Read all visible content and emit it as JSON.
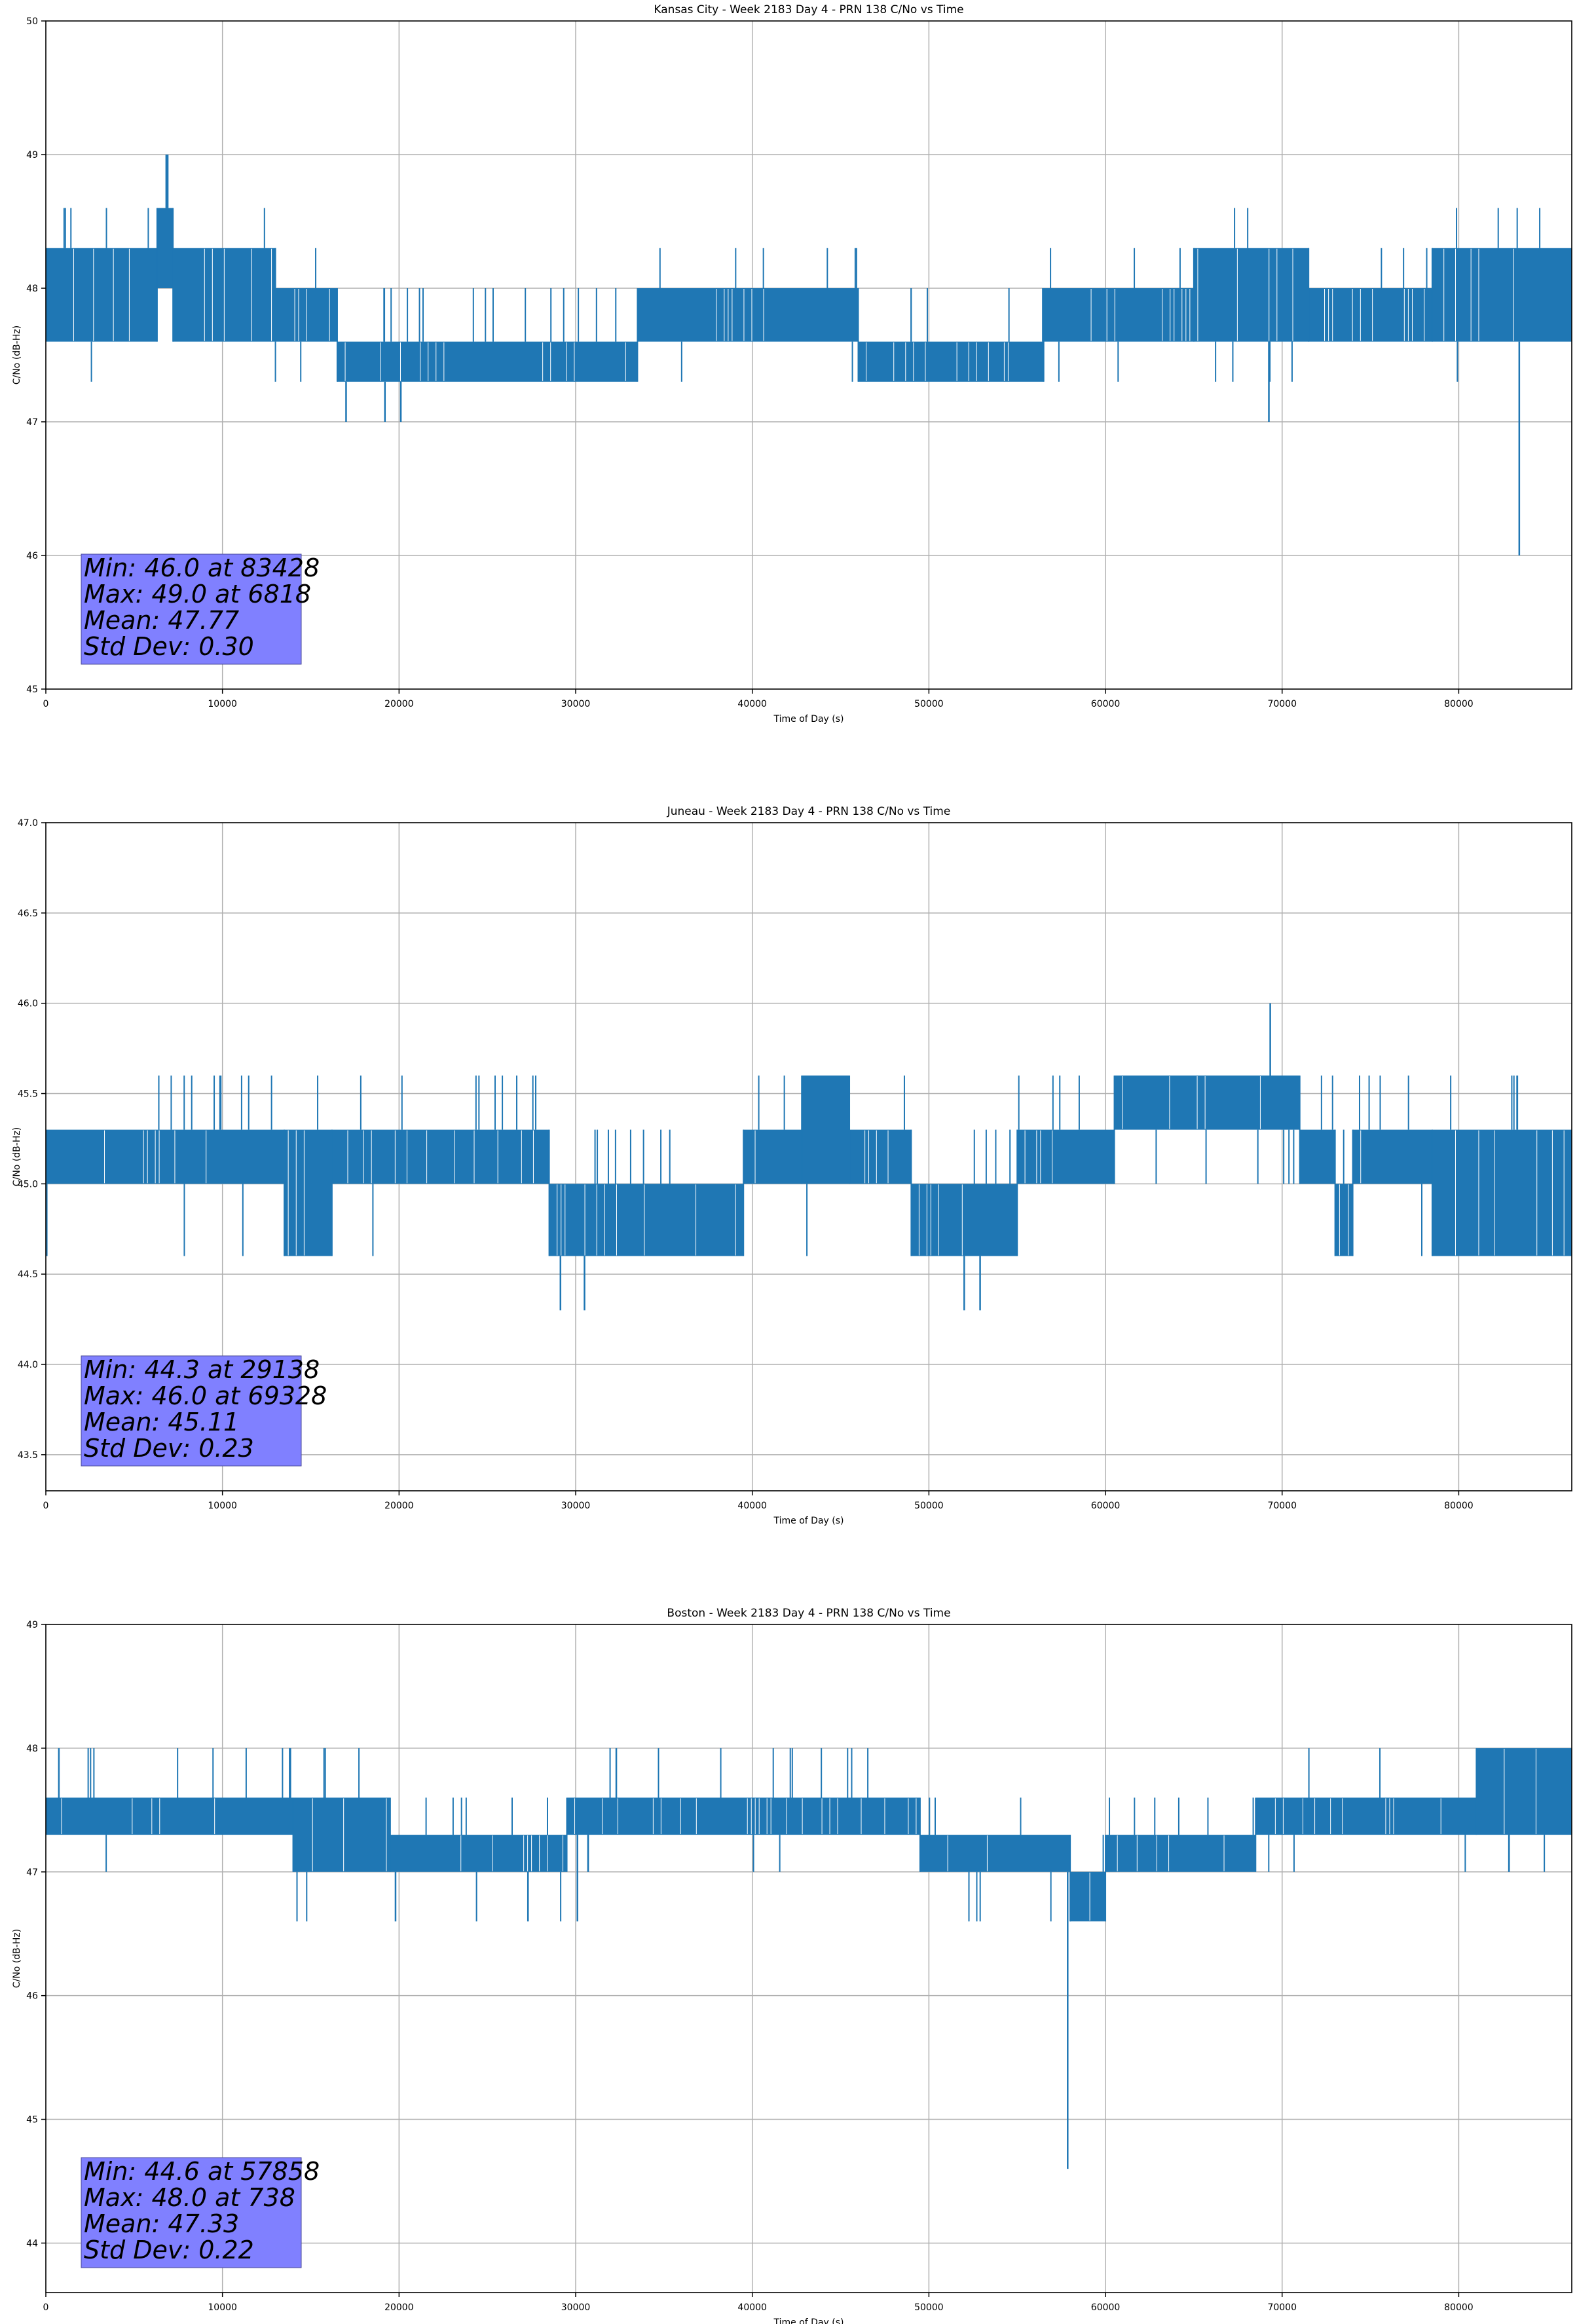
{
  "figure": {
    "colors": {
      "line": "#1f77b4",
      "grid": "#b0b0b0",
      "stats_box": "#8080ff",
      "axis": "#000000"
    }
  },
  "chart_data": [
    {
      "type": "line",
      "title": "Kansas City - Week 2183 Day 4 - PRN 138 C/No vs Time",
      "xlabel": "Time of Day (s)",
      "ylabel": "C/No (dB-Hz)",
      "xlim": [
        0,
        86400
      ],
      "ylim": [
        45,
        50
      ],
      "xticks": [
        0,
        10000,
        20000,
        30000,
        40000,
        50000,
        60000,
        70000,
        80000
      ],
      "xtick_labels": [
        "0",
        "10000",
        "20000",
        "30000",
        "40000",
        "50000",
        "60000",
        "70000",
        "80000"
      ],
      "yticks": [
        45,
        46,
        47,
        48,
        49,
        50
      ],
      "ytick_labels": [
        "45",
        "46",
        "47",
        "48",
        "49",
        "50"
      ],
      "grid": true,
      "series_levels": [
        47.3,
        47.6,
        48.0,
        48.3,
        48.6
      ],
      "segments": [
        {
          "x0": 0,
          "x1": 6300,
          "low": 47.6,
          "high": 48.3
        },
        {
          "x0": 6300,
          "x1": 7200,
          "low": 48.0,
          "high": 48.6
        },
        {
          "x0": 7200,
          "x1": 13000,
          "low": 47.6,
          "high": 48.3
        },
        {
          "x0": 13000,
          "x1": 16500,
          "low": 47.6,
          "high": 48.0
        },
        {
          "x0": 16500,
          "x1": 33500,
          "low": 47.3,
          "high": 47.6
        },
        {
          "x0": 33500,
          "x1": 46000,
          "low": 47.6,
          "high": 48.0
        },
        {
          "x0": 46000,
          "x1": 56500,
          "low": 47.3,
          "high": 47.6
        },
        {
          "x0": 56500,
          "x1": 65000,
          "low": 47.6,
          "high": 48.0
        },
        {
          "x0": 65000,
          "x1": 71500,
          "low": 47.6,
          "high": 48.3
        },
        {
          "x0": 71500,
          "x1": 78500,
          "low": 47.6,
          "high": 48.0
        },
        {
          "x0": 78500,
          "x1": 86400,
          "low": 47.6,
          "high": 48.3
        }
      ],
      "extremes": [
        {
          "x": 6818,
          "y": 49.0
        },
        {
          "x": 6900,
          "y": 49.0
        },
        {
          "x": 83428,
          "y": 46.0
        },
        {
          "x": 69250,
          "y": 47.0
        },
        {
          "x": 17000,
          "y": 47.0
        },
        {
          "x": 19200,
          "y": 47.0
        },
        {
          "x": 20100,
          "y": 47.0
        }
      ],
      "stats": [
        "Min: 46.0 at 83428",
        "Max: 49.0 at 6818",
        "Mean: 47.77",
        "Std Dev: 0.30"
      ]
    },
    {
      "type": "line",
      "title": "Juneau - Week 2183 Day 4 - PRN 138 C/No vs Time",
      "xlabel": "Time of Day (s)",
      "ylabel": "C/No (dB-Hz)",
      "xlim": [
        0,
        86400
      ],
      "ylim": [
        43.3,
        47.0
      ],
      "xticks": [
        0,
        10000,
        20000,
        30000,
        40000,
        50000,
        60000,
        70000,
        80000
      ],
      "xtick_labels": [
        "0",
        "10000",
        "20000",
        "30000",
        "40000",
        "50000",
        "60000",
        "70000",
        "80000"
      ],
      "yticks": [
        43.5,
        44.0,
        44.5,
        45.0,
        45.5,
        46.0,
        46.5,
        47.0
      ],
      "ytick_labels": [
        "43.5",
        "44.0",
        "44.5",
        "45.0",
        "45.5",
        "46.0",
        "46.5",
        "47.0"
      ],
      "grid": true,
      "series_levels": [
        44.6,
        45.0,
        45.3,
        45.6
      ],
      "segments": [
        {
          "x0": 0,
          "x1": 13500,
          "low": 45.0,
          "high": 45.3
        },
        {
          "x0": 13500,
          "x1": 16200,
          "low": 44.6,
          "high": 45.3
        },
        {
          "x0": 16200,
          "x1": 28500,
          "low": 45.0,
          "high": 45.3
        },
        {
          "x0": 28500,
          "x1": 39500,
          "low": 44.6,
          "high": 45.0
        },
        {
          "x0": 39500,
          "x1": 42800,
          "low": 45.0,
          "high": 45.3
        },
        {
          "x0": 42800,
          "x1": 45500,
          "low": 45.0,
          "high": 45.6
        },
        {
          "x0": 45500,
          "x1": 49000,
          "low": 45.0,
          "high": 45.3
        },
        {
          "x0": 49000,
          "x1": 55000,
          "low": 44.6,
          "high": 45.0
        },
        {
          "x0": 55000,
          "x1": 60500,
          "low": 45.0,
          "high": 45.3
        },
        {
          "x0": 60500,
          "x1": 71000,
          "low": 45.3,
          "high": 45.6
        },
        {
          "x0": 71000,
          "x1": 73000,
          "low": 45.0,
          "high": 45.3
        },
        {
          "x0": 73000,
          "x1": 74000,
          "low": 44.6,
          "high": 45.0
        },
        {
          "x0": 74000,
          "x1": 78500,
          "low": 45.0,
          "high": 45.3
        },
        {
          "x0": 78500,
          "x1": 86400,
          "low": 44.6,
          "high": 45.3
        }
      ],
      "extremes": [
        {
          "x": 29138,
          "y": 44.3
        },
        {
          "x": 30500,
          "y": 44.3
        },
        {
          "x": 52000,
          "y": 44.3
        },
        {
          "x": 52900,
          "y": 44.3
        },
        {
          "x": 69328,
          "y": 46.0
        }
      ],
      "stats": [
        "Min: 44.3 at 29138",
        "Max: 46.0 at 69328",
        "Mean: 45.11",
        "Std Dev: 0.23"
      ]
    },
    {
      "type": "line",
      "title": "Boston - Week 2183 Day 4 - PRN 138 C/No vs Time",
      "xlabel": "Time of Day (s)",
      "ylabel": "C/No (dB-Hz)",
      "xlim": [
        0,
        86400
      ],
      "ylim": [
        43.6,
        49.0
      ],
      "xticks": [
        0,
        10000,
        20000,
        30000,
        40000,
        50000,
        60000,
        70000,
        80000
      ],
      "xtick_labels": [
        "0",
        "10000",
        "20000",
        "30000",
        "40000",
        "50000",
        "60000",
        "70000",
        "80000"
      ],
      "yticks": [
        44,
        45,
        46,
        47,
        48,
        49
      ],
      "ytick_labels": [
        "44",
        "45",
        "46",
        "47",
        "48",
        "49"
      ],
      "grid": true,
      "series_levels": [
        46.6,
        47.0,
        47.3,
        47.6,
        48.0
      ],
      "segments": [
        {
          "x0": 0,
          "x1": 14000,
          "low": 47.3,
          "high": 47.6
        },
        {
          "x0": 14000,
          "x1": 19500,
          "low": 47.0,
          "high": 47.6
        },
        {
          "x0": 19500,
          "x1": 29500,
          "low": 47.0,
          "high": 47.3
        },
        {
          "x0": 29500,
          "x1": 49500,
          "low": 47.3,
          "high": 47.6
        },
        {
          "x0": 49500,
          "x1": 58000,
          "low": 47.0,
          "high": 47.3
        },
        {
          "x0": 58000,
          "x1": 60000,
          "low": 46.6,
          "high": 47.0
        },
        {
          "x0": 60000,
          "x1": 68500,
          "low": 47.0,
          "high": 47.3
        },
        {
          "x0": 68500,
          "x1": 81000,
          "low": 47.3,
          "high": 47.6
        },
        {
          "x0": 81000,
          "x1": 86400,
          "low": 47.3,
          "high": 48.0
        }
      ],
      "extremes": [
        {
          "x": 738,
          "y": 48.0
        },
        {
          "x": 57858,
          "y": 44.6
        },
        {
          "x": 19800,
          "y": 46.6
        },
        {
          "x": 27300,
          "y": 46.6
        },
        {
          "x": 30100,
          "y": 46.6
        },
        {
          "x": 32300,
          "y": 48.0
        }
      ],
      "stats": [
        "Min: 44.6 at 57858",
        "Max: 48.0 at 738",
        "Mean: 47.33",
        "Std Dev: 0.22"
      ]
    }
  ]
}
